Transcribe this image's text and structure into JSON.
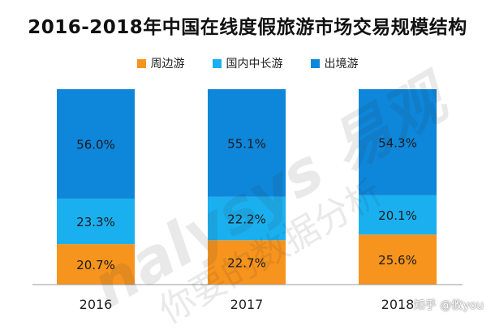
{
  "chart_data": {
    "type": "bar",
    "stacked": true,
    "normalized": true,
    "title": "2016-2018年中国在线度假旅游市场交易规模结构",
    "categories": [
      "2016",
      "2017",
      "2018"
    ],
    "series": [
      {
        "name": "周边游",
        "values": [
          20.7,
          22.7,
          25.6
        ],
        "labels": [
          "20.7%",
          "22.7%",
          "25.6%"
        ],
        "color": "#F7941D"
      },
      {
        "name": "国内中长游",
        "values": [
          23.3,
          22.2,
          20.1
        ],
        "labels": [
          "23.3%",
          "22.2%",
          "20.1%"
        ],
        "color": "#1AB0F0"
      },
      {
        "name": "出境游",
        "values": [
          56.0,
          55.1,
          54.3
        ],
        "labels": [
          "56.0%",
          "55.1%",
          "54.3%"
        ],
        "color": "#0E86DA"
      }
    ],
    "ylim": [
      0,
      100
    ],
    "xlabel": "",
    "ylabel": "",
    "grid": false,
    "legend_position": "top-center"
  },
  "watermark": {
    "brand_text": "nalysys 易观",
    "slogan_text": "你要的数据分析"
  },
  "credit": "知乎 @攸you"
}
